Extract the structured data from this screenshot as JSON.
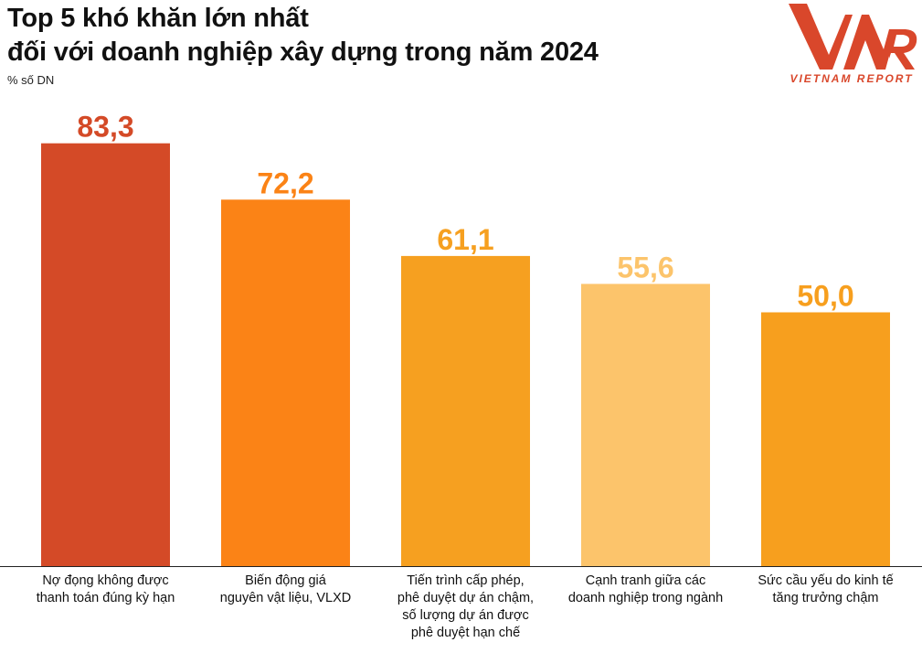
{
  "title": {
    "line1": "Top 5 khó khăn lớn nhất",
    "line2": "đối với doanh nghiệp xây dựng trong năm 2024"
  },
  "unit_label": "% số DN",
  "logo": {
    "mark": "VNR",
    "text": "VIETNAM REPORT",
    "color": "#d9472b"
  },
  "chart_data": {
    "type": "bar",
    "categories": [
      "Nợ đọng không được thanh toán đúng kỳ hạn",
      "Biến động giá nguyên vật liệu, VLXD",
      "Tiến trình cấp phép, phê duyệt dự án chậm, số lượng dự án được phê duyệt hạn chế",
      "Cạnh tranh giữa các doanh nghiệp trong ngành",
      "Sức cầu yếu do kinh tế tăng trưởng chậm"
    ],
    "category_lines": [
      [
        "Nợ đọng không được",
        "thanh toán đúng kỳ hạn"
      ],
      [
        "Biến động giá",
        "nguyên vật liệu, VLXD"
      ],
      [
        "Tiến trình cấp phép,",
        "phê duyệt dự án chậm,",
        "số lượng dự án được",
        "phê duyệt hạn chế"
      ],
      [
        "Cạnh tranh giữa các",
        "doanh nghiệp trong ngành"
      ],
      [
        "Sức cầu yếu do kinh tế",
        "tăng trưởng chậm"
      ]
    ],
    "values": [
      83.3,
      72.2,
      61.1,
      55.6,
      50.0
    ],
    "value_labels": [
      "83,3",
      "72,2",
      "61,1",
      "55,6",
      "50,0"
    ],
    "colors": [
      "#d44a27",
      "#fb8316",
      "#f6a020",
      "#fcc46b",
      "#f79f1e"
    ],
    "ylim": [
      0,
      100
    ],
    "grid": false,
    "legend": "none"
  }
}
